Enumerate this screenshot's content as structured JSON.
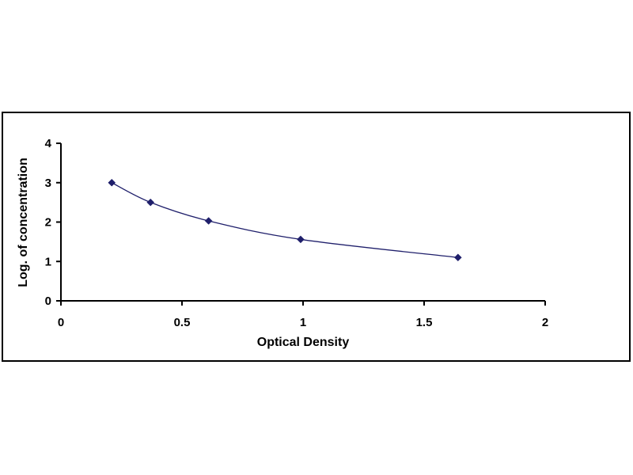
{
  "chart_data": {
    "type": "scatter",
    "xlabel": "Optical Density",
    "ylabel": "Log. of concentration",
    "xlim": [
      0,
      2
    ],
    "ylim": [
      0,
      4
    ],
    "x_ticks": [
      "0",
      "0.5",
      "1",
      "1.5",
      "2"
    ],
    "y_ticks": [
      "0",
      "1",
      "2",
      "3",
      "4"
    ],
    "grid": false,
    "legend": "none",
    "series": [
      {
        "x": [
          0.21,
          0.37,
          0.61,
          0.99,
          1.64
        ],
        "y": [
          3.0,
          2.5,
          2.03,
          1.56,
          1.1
        ],
        "marker": "diamond",
        "line": "smooth",
        "color": "#1f1f6b"
      }
    ]
  }
}
